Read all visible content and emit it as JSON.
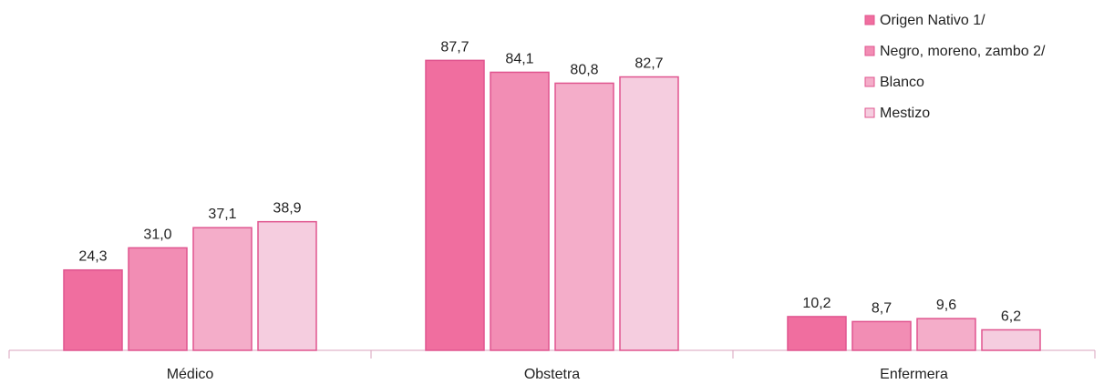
{
  "chart_data": {
    "type": "bar",
    "categories": [
      "Médico",
      "Obstetra",
      "Enfermera"
    ],
    "series": [
      {
        "name": "Origen Nativo 1/",
        "values": [
          24.3,
          87.7,
          10.2
        ],
        "color": "#f06e9f",
        "labels": [
          "24,3",
          "87,7",
          "10,2"
        ]
      },
      {
        "name": "Negro, moreno, zambo 2/",
        "values": [
          31.0,
          84.1,
          8.7
        ],
        "color": "#f28db4",
        "labels": [
          "31,0",
          "84,1",
          "8,7"
        ]
      },
      {
        "name": "Blanco",
        "values": [
          37.1,
          80.8,
          9.6
        ],
        "color": "#f4adc9",
        "labels": [
          "37,1",
          "80,8",
          "9,6"
        ]
      },
      {
        "name": "Mestizo",
        "values": [
          38.9,
          82.7,
          6.2
        ],
        "color": "#f5cddf",
        "labels": [
          "38,9",
          "82,7",
          "6,2"
        ]
      }
    ],
    "ylim": [
      0,
      90
    ],
    "grid": false,
    "legend_position": "top-right",
    "border_color": "#e0558f"
  }
}
